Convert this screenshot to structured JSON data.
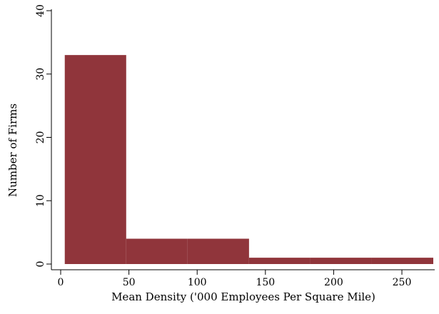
{
  "chart_data": {
    "type": "bar",
    "subtype": "histogram",
    "title": "",
    "xlabel": "Mean Density ('000 Employees Per Square Mile)",
    "ylabel": "Number of Firms",
    "bins": [
      {
        "x0": 3,
        "x1": 48,
        "count": 33
      },
      {
        "x0": 48,
        "x1": 93,
        "count": 4
      },
      {
        "x0": 93,
        "x1": 138,
        "count": 4
      },
      {
        "x0": 138,
        "x1": 183,
        "count": 1
      },
      {
        "x0": 183,
        "x1": 228,
        "count": 1
      },
      {
        "x0": 228,
        "x1": 273,
        "count": 1
      }
    ],
    "xlim": [
      0,
      273
    ],
    "ylim": [
      0,
      40
    ],
    "xticks": [
      0,
      50,
      100,
      150,
      200,
      250
    ],
    "yticks": [
      0,
      10,
      20,
      30,
      40
    ],
    "grid": false,
    "bar_color": "#90353b"
  }
}
